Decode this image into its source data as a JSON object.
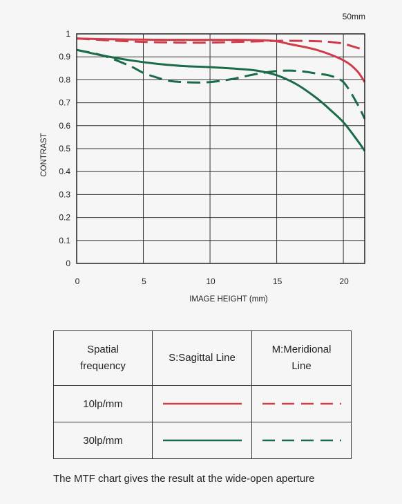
{
  "chart_data": {
    "type": "line",
    "title": "50mm",
    "xlabel": "IMAGE HEIGHT (mm)",
    "ylabel": "CONTRAST",
    "xlim": [
      0,
      21.6
    ],
    "ylim": [
      0,
      1
    ],
    "x_ticks": [
      0,
      5,
      10,
      15,
      20
    ],
    "y_ticks": [
      0,
      0.1,
      0.2,
      0.3,
      0.4,
      0.5,
      0.6,
      0.7,
      0.8,
      0.9,
      1
    ],
    "x_tick_labels": [
      "0",
      "5",
      "10",
      "15",
      "20"
    ],
    "y_tick_labels": [
      "0",
      "0.1",
      "0.2",
      "0.3",
      "0.4",
      "0.5",
      "0.6",
      "0.7",
      "0.8",
      "0.9",
      "1"
    ],
    "grid": true,
    "series": [
      {
        "frequency": "10lp/mm",
        "line": "S:Sagittal Line",
        "color": "#d13c4b",
        "style": "solid",
        "x": [
          0,
          2,
          5,
          8,
          10,
          12,
          14,
          15,
          16,
          18,
          20,
          21,
          21.6
        ],
        "y": [
          0.98,
          0.977,
          0.975,
          0.974,
          0.974,
          0.974,
          0.972,
          0.968,
          0.955,
          0.93,
          0.885,
          0.84,
          0.79
        ]
      },
      {
        "frequency": "10lp/mm",
        "line": "M:Meridional Line",
        "color": "#d13c4b",
        "style": "dashed",
        "x": [
          0,
          2,
          5,
          8,
          10,
          12,
          14,
          16,
          18,
          19,
          20,
          21,
          21.6
        ],
        "y": [
          0.98,
          0.973,
          0.965,
          0.962,
          0.962,
          0.965,
          0.968,
          0.97,
          0.968,
          0.965,
          0.957,
          0.94,
          0.93
        ]
      },
      {
        "frequency": "30lp/mm",
        "line": "S:Sagittal Line",
        "color": "#1a6b48",
        "style": "solid",
        "x": [
          0,
          2,
          4,
          6,
          8,
          10,
          12,
          13.5,
          15,
          16.5,
          18,
          19,
          20,
          21,
          21.6
        ],
        "y": [
          0.93,
          0.905,
          0.885,
          0.87,
          0.86,
          0.855,
          0.848,
          0.84,
          0.82,
          0.78,
          0.72,
          0.67,
          0.615,
          0.54,
          0.49
        ]
      },
      {
        "frequency": "30lp/mm",
        "line": "M:Meridional Line",
        "color": "#1a6b48",
        "style": "dashed",
        "x": [
          0,
          2,
          4,
          5,
          6,
          7,
          8,
          9,
          10,
          11,
          12,
          13,
          14,
          15,
          16,
          17,
          18,
          19,
          20,
          21,
          21.6
        ],
        "y": [
          0.93,
          0.905,
          0.86,
          0.83,
          0.81,
          0.795,
          0.79,
          0.788,
          0.79,
          0.797,
          0.807,
          0.82,
          0.83,
          0.838,
          0.84,
          0.836,
          0.827,
          0.818,
          0.79,
          0.7,
          0.63
        ]
      }
    ]
  },
  "legend": {
    "header_col1_line1": "Spatial",
    "header_col1_line2": "frequency",
    "header_col2": "S:Sagittal Line",
    "header_col3_line1": "M:Meridional",
    "header_col3_line2": "Line",
    "row1_label": "10lp/mm",
    "row2_label": "30lp/mm",
    "row1_color": "#d13c4b",
    "row2_color": "#1a6b48"
  },
  "footnote": "The MTF chart gives the result at the wide-open aperture"
}
